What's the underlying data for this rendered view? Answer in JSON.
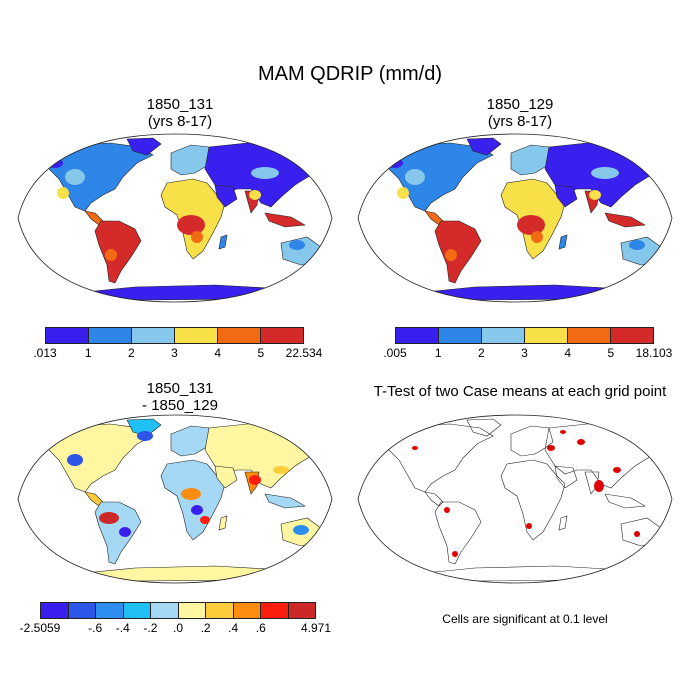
{
  "title": "MAM QDRIP (mm/d)",
  "panels": {
    "p1": {
      "title": "1850_131\n(yrs 8-17)"
    },
    "p2": {
      "title": "1850_129\n(yrs 8-17)"
    },
    "p3": {
      "title": "1850_131\n- 1850_129"
    },
    "p4": {
      "title": "T-Test of two Case means at each grid point"
    }
  },
  "colorbars": {
    "cb1": {
      "colors": [
        "#3a20ee",
        "#2e86e8",
        "#86c8ec",
        "#f8e048",
        "#f26a14",
        "#d42a2a"
      ],
      "labels": [
        ".013",
        "1",
        "2",
        "3",
        "4",
        "5",
        "22.534"
      ]
    },
    "cb2": {
      "colors": [
        "#3a20ee",
        "#2e86e8",
        "#86c8ec",
        "#f8e048",
        "#f26a14",
        "#d42a2a"
      ],
      "labels": [
        ".005",
        "1",
        "2",
        "3",
        "4",
        "5",
        "18.103"
      ]
    },
    "cb3": {
      "colors": [
        "#3a20ee",
        "#2c56e8",
        "#2d8ef0",
        "#20c0f6",
        "#a4d8f4",
        "#fef6a0",
        "#fccc3c",
        "#fb8c10",
        "#fa1e0e",
        "#cc2828"
      ],
      "labels": [
        "-2.5059",
        "",
        "-.6",
        "-.4",
        "-.2",
        ".0",
        ".2",
        ".4",
        ".6",
        "",
        "4.971"
      ]
    }
  },
  "note": "Cells are significant at 0.1 level"
}
